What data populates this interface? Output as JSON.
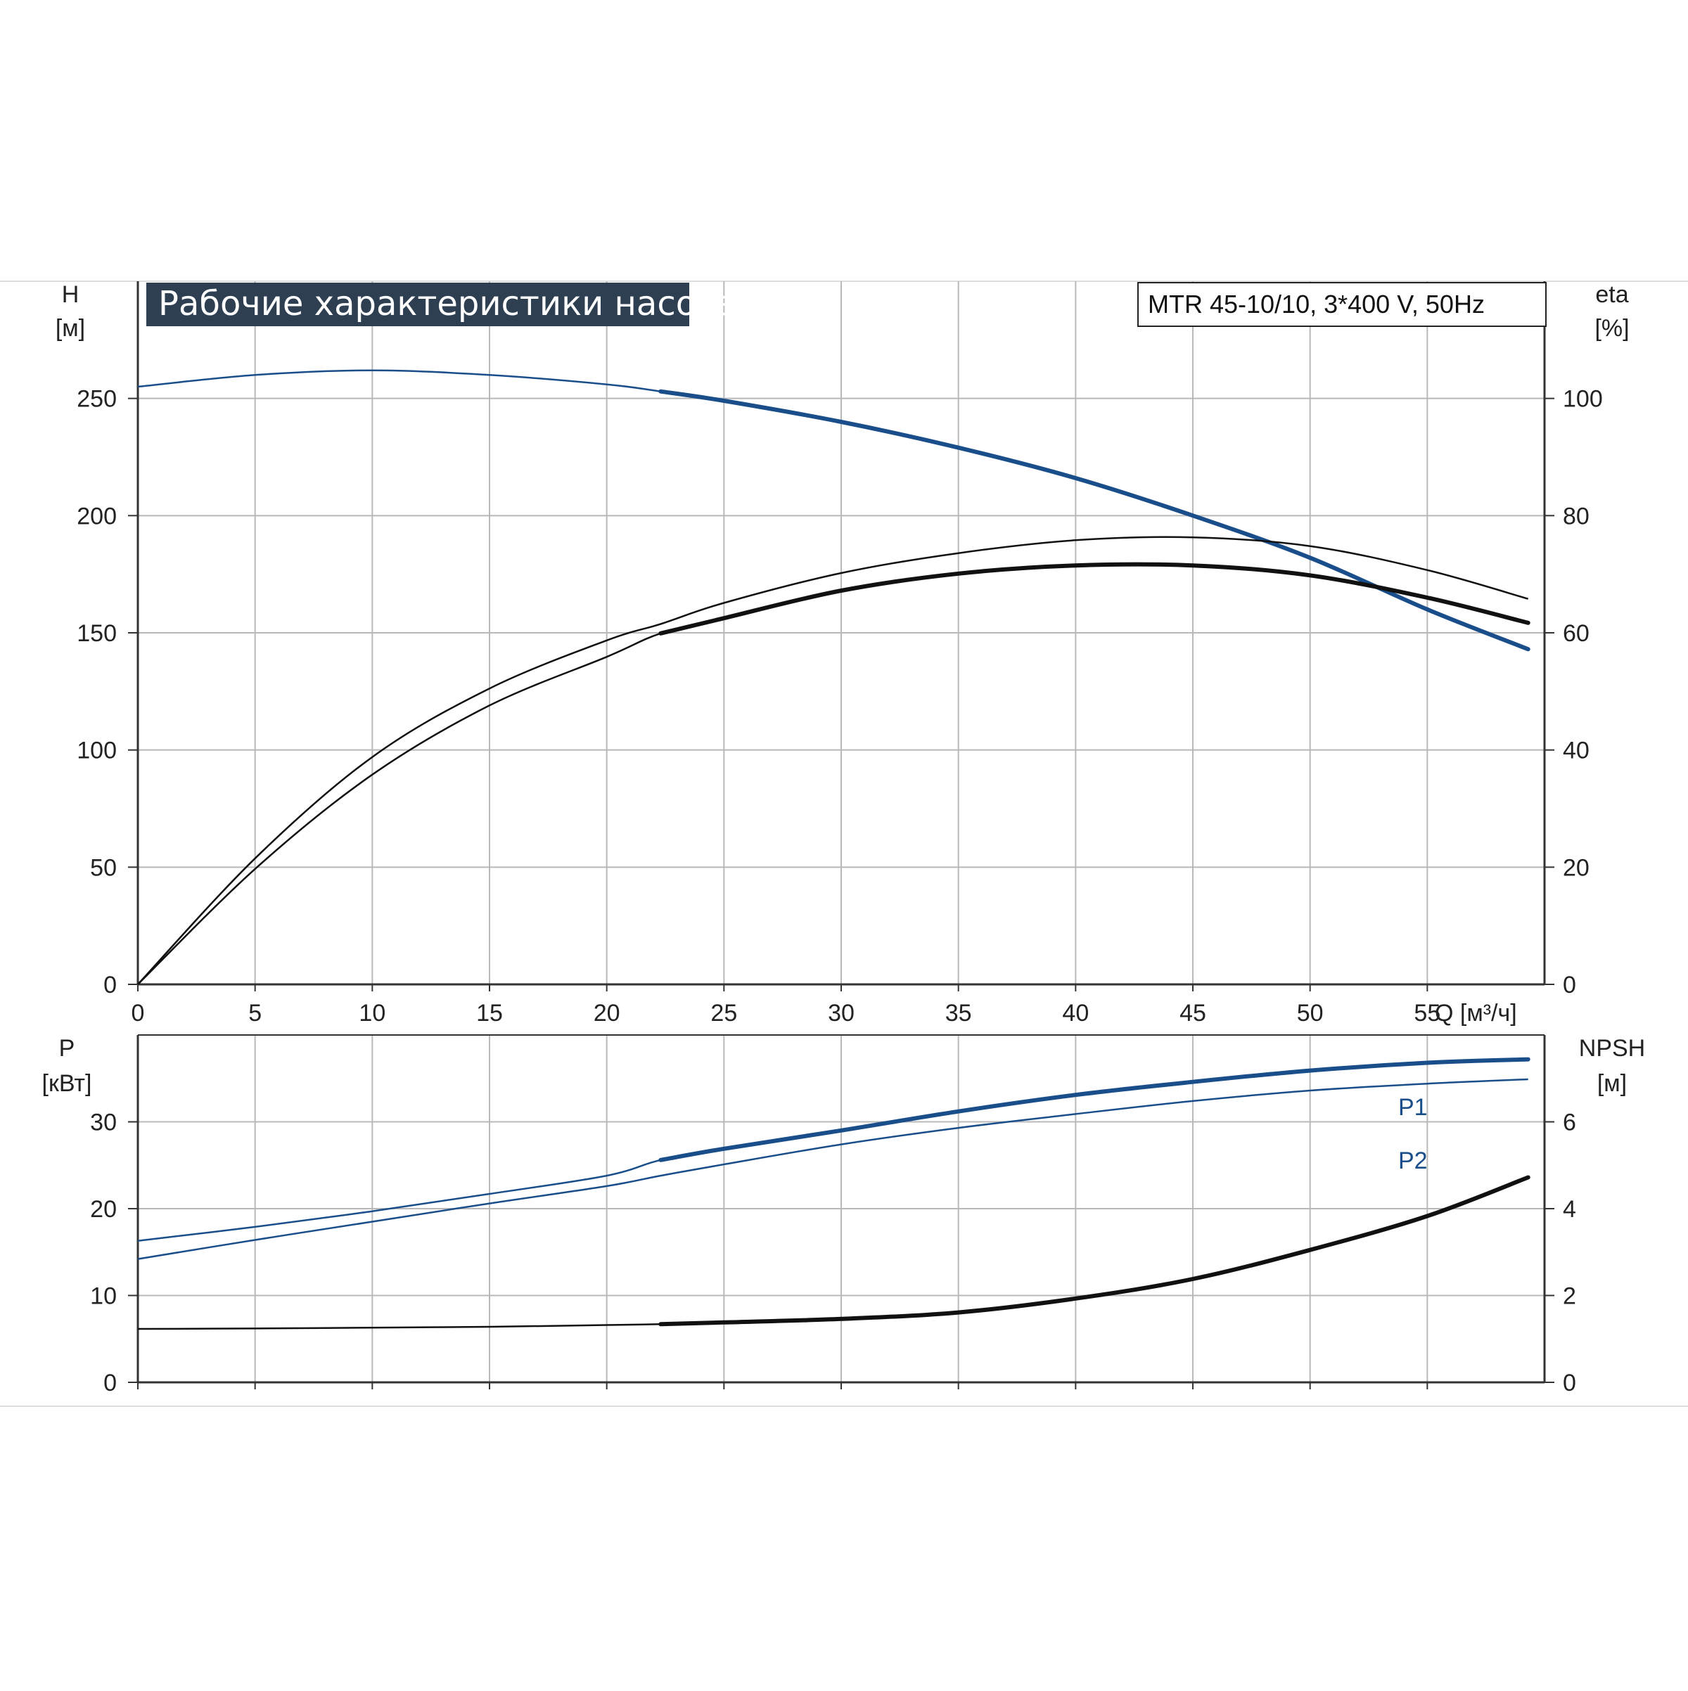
{
  "title": "Рабочие характеристики насоса",
  "model": "MTR 45-10/10, 3*400 V, 50Hz",
  "colors": {
    "blue": "#1a4e8a",
    "black": "#111111",
    "title_bg": "#2f3f52",
    "grid": "#b8b8b8",
    "axis": "#333333"
  },
  "chart_data": [
    {
      "name": "head-efficiency",
      "type": "line",
      "x_label": "Q [м³/ч]",
      "x_ticks": [
        "0",
        "5",
        "10",
        "15",
        "20",
        "25",
        "30",
        "35",
        "40",
        "45",
        "50",
        "55"
      ],
      "xlim": [
        0,
        60
      ],
      "left_axis": {
        "label_top": "H",
        "label_unit": "[м]",
        "range": [
          0,
          300
        ],
        "ticks": [
          "0",
          "50",
          "100",
          "150",
          "200",
          "250"
        ]
      },
      "right_axis": {
        "label_top": "eta",
        "label_unit": "[%]",
        "range": [
          0,
          120
        ],
        "ticks": [
          "0",
          "20",
          "40",
          "60",
          "80",
          "100"
        ]
      },
      "grid": true,
      "series": [
        {
          "id": "H",
          "axis": "left",
          "color": "#1a4e8a",
          "x": [
            0,
            5,
            10,
            15,
            20,
            22.3,
            25,
            30,
            35,
            40,
            45,
            50,
            55,
            59.3
          ],
          "y": [
            255,
            260,
            262,
            260,
            256,
            253,
            249,
            240,
            229,
            216,
            200,
            182,
            160,
            143
          ],
          "bold_from": 22.3
        },
        {
          "id": "eta1",
          "axis": "right",
          "color": "#111111",
          "x": [
            0,
            5,
            10,
            15,
            20,
            22.3,
            25,
            30,
            35,
            40,
            45,
            50,
            55,
            59.3
          ],
          "y": [
            0,
            21.5,
            38.8,
            50.5,
            58.7,
            61.5,
            65.1,
            70.2,
            73.6,
            75.8,
            76.3,
            74.8,
            70.7,
            65.8
          ]
        },
        {
          "id": "eta2",
          "axis": "right",
          "color": "#111111",
          "x": [
            0,
            5,
            10,
            15,
            20,
            22.3,
            25,
            30,
            35,
            40,
            45,
            50,
            55,
            59.3
          ],
          "y": [
            0,
            19.7,
            35.8,
            47.6,
            55.9,
            59.9,
            62.5,
            67.2,
            70.1,
            71.5,
            71.5,
            69.8,
            66.0,
            61.7
          ],
          "bold_from": 22.3
        }
      ]
    },
    {
      "name": "power-npsh",
      "type": "line",
      "x_label": "",
      "xlim": [
        0,
        60
      ],
      "left_axis": {
        "label_top": "P",
        "label_unit": "[кВт]",
        "range": [
          0,
          40
        ],
        "ticks": [
          "0",
          "10",
          "20",
          "30"
        ]
      },
      "right_axis": {
        "label_top": "NPSH",
        "label_unit": "[м]",
        "range": [
          0,
          8
        ],
        "ticks": [
          "0",
          "2",
          "4",
          "6"
        ]
      },
      "grid": true,
      "series": [
        {
          "id": "P1",
          "name": "P1",
          "axis": "left",
          "color": "#1a4e8a",
          "x": [
            0,
            5,
            10,
            15,
            20,
            22.3,
            25,
            30,
            35,
            40,
            45,
            50,
            55,
            59.3
          ],
          "y": [
            16.3,
            17.9,
            19.7,
            21.7,
            23.8,
            25.6,
            26.9,
            29.0,
            31.2,
            33.1,
            34.6,
            35.9,
            36.8,
            37.2
          ],
          "bold_from": 22.3
        },
        {
          "id": "P2",
          "name": "P2",
          "axis": "left",
          "color": "#1a4e8a",
          "x": [
            0,
            5,
            10,
            15,
            20,
            22.3,
            25,
            30,
            35,
            40,
            45,
            50,
            55,
            59.3
          ],
          "y": [
            14.2,
            16.4,
            18.5,
            20.6,
            22.6,
            23.8,
            25.1,
            27.4,
            29.3,
            30.9,
            32.4,
            33.6,
            34.4,
            34.9
          ]
        },
        {
          "id": "NPSH",
          "axis": "right",
          "color": "#111111",
          "x": [
            0,
            5,
            10,
            15,
            20,
            22.3,
            25,
            30,
            35,
            40,
            45,
            50,
            55,
            59.3
          ],
          "y": [
            1.23,
            1.24,
            1.26,
            1.28,
            1.32,
            1.34,
            1.38,
            1.46,
            1.61,
            1.93,
            2.38,
            3.05,
            3.83,
            4.72
          ],
          "bold_from": 22.3
        }
      ]
    }
  ]
}
